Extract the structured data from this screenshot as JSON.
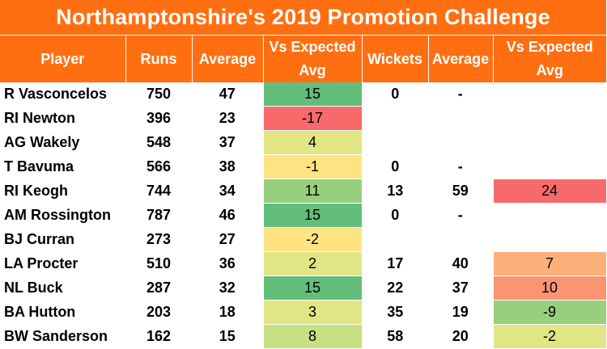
{
  "title": "Northamptonshire's 2019 Promotion Challenge",
  "headers": {
    "player": "Player",
    "runs": "Runs",
    "batting_average": "Average",
    "batting_vs_expected": "Vs Expected Avg",
    "wickets": "Wickets",
    "bowling_average": "Average",
    "bowling_vs_expected": "Vs Expected Avg"
  },
  "colors": {
    "header_orange": "#ff6f12",
    "deep_green": "#63be7b",
    "mid_green": "#98cf7e",
    "light_green": "#c6e082",
    "yellow_green": "#e2e584",
    "light_yellow": "#fee382",
    "orange": "#fcb07a",
    "salmon": "#fa9473",
    "red": "#f8696b"
  },
  "rows": [
    {
      "player": "R Vasconcelos",
      "runs": "750",
      "bat_avg": "47",
      "bat_vs": "15",
      "bat_vs_color": "#63be7b",
      "wickets": "0",
      "bowl_avg": "-",
      "bowl_vs": "",
      "bowl_vs_color": "#ffffff"
    },
    {
      "player": "RI Newton",
      "runs": "396",
      "bat_avg": "23",
      "bat_vs": "-17",
      "bat_vs_color": "#f8696b",
      "wickets": "",
      "bowl_avg": "",
      "bowl_vs": "",
      "bowl_vs_color": "#ffffff"
    },
    {
      "player": "AG Wakely",
      "runs": "548",
      "bat_avg": "37",
      "bat_vs": "4",
      "bat_vs_color": "#e2e584",
      "wickets": "",
      "bowl_avg": "",
      "bowl_vs": "",
      "bowl_vs_color": "#ffffff"
    },
    {
      "player": "T Bavuma",
      "runs": "566",
      "bat_avg": "38",
      "bat_vs": "-1",
      "bat_vs_color": "#fee382",
      "wickets": "0",
      "bowl_avg": "-",
      "bowl_vs": "",
      "bowl_vs_color": "#ffffff"
    },
    {
      "player": "RI Keogh",
      "runs": "744",
      "bat_avg": "34",
      "bat_vs": "11",
      "bat_vs_color": "#98cf7e",
      "wickets": "13",
      "bowl_avg": "59",
      "bowl_vs": "24",
      "bowl_vs_color": "#f8696b"
    },
    {
      "player": "AM Rossington",
      "runs": "787",
      "bat_avg": "46",
      "bat_vs": "15",
      "bat_vs_color": "#63be7b",
      "wickets": "0",
      "bowl_avg": "-",
      "bowl_vs": "",
      "bowl_vs_color": "#ffffff"
    },
    {
      "player": "BJ Curran",
      "runs": "273",
      "bat_avg": "27",
      "bat_vs": "-2",
      "bat_vs_color": "#fee382",
      "wickets": "",
      "bowl_avg": "",
      "bowl_vs": "",
      "bowl_vs_color": "#ffffff"
    },
    {
      "player": "LA Procter",
      "runs": "510",
      "bat_avg": "36",
      "bat_vs": "2",
      "bat_vs_color": "#e2e584",
      "wickets": "17",
      "bowl_avg": "40",
      "bowl_vs": "7",
      "bowl_vs_color": "#fcb07a"
    },
    {
      "player": "NL Buck",
      "runs": "287",
      "bat_avg": "32",
      "bat_vs": "15",
      "bat_vs_color": "#63be7b",
      "wickets": "22",
      "bowl_avg": "37",
      "bowl_vs": "10",
      "bowl_vs_color": "#fa9473"
    },
    {
      "player": "BA Hutton",
      "runs": "203",
      "bat_avg": "18",
      "bat_vs": "3",
      "bat_vs_color": "#e2e584",
      "wickets": "35",
      "bowl_avg": "19",
      "bowl_vs": "-9",
      "bowl_vs_color": "#98cf7e"
    },
    {
      "player": "BW Sanderson",
      "runs": "162",
      "bat_avg": "15",
      "bat_vs": "8",
      "bat_vs_color": "#c6e082",
      "wickets": "58",
      "bowl_avg": "20",
      "bowl_vs": "-2",
      "bowl_vs_color": "#e2e584"
    }
  ]
}
